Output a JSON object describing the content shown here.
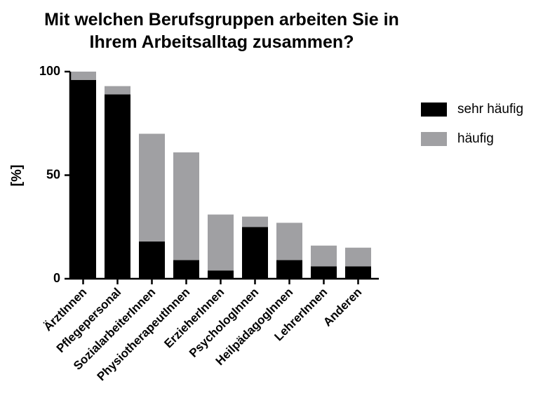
{
  "chart_data": {
    "type": "stacked_bar",
    "title": [
      "Mit welchen Berufsgruppen arbeiten Sie in",
      "Ihrem Arbeitsalltag zusammen?"
    ],
    "y_label": "[%]",
    "categories": [
      "ÄrztInnen",
      "Pflegepersonal",
      "SozialarbeiterInnen",
      "PhysiotherapeutInnen",
      "ErzieherInnen",
      "PsychologInnen",
      "HeilpädagogInnen",
      "LehrerInnen",
      "Anderen"
    ],
    "series": [
      {
        "name": "sehr häufig",
        "color": "#000000",
        "values": [
          96,
          89,
          18,
          9,
          4,
          25,
          9,
          6,
          6
        ]
      },
      {
        "name": "häufig",
        "color": "#a0a0a3",
        "values": [
          4,
          4,
          52,
          52,
          27,
          5,
          18,
          10,
          9
        ]
      }
    ],
    "ylim": [
      0,
      100
    ],
    "yticks": [
      0,
      50,
      100
    ],
    "legend": "right"
  }
}
